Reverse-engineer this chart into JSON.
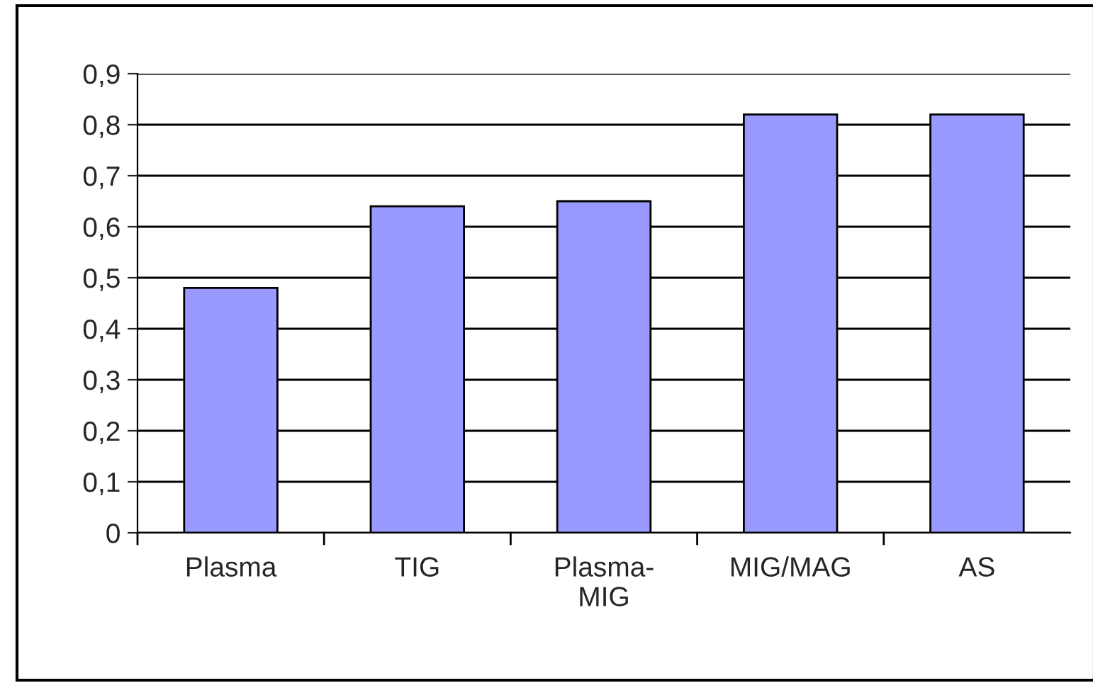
{
  "chart_data": {
    "type": "bar",
    "categories": [
      "Plasma",
      "TIG",
      "Plasma-\nMIG",
      "MIG/MAG",
      "AS"
    ],
    "values": [
      0.48,
      0.64,
      0.65,
      0.82,
      0.82
    ],
    "color": "#9999ff",
    "ylim": [
      0,
      0.9
    ],
    "yticks": [
      0,
      {
        "value": 0.1,
        "label": "0,1"
      },
      {
        "value": 0.2,
        "label": "0,2"
      },
      {
        "value": 0.3,
        "label": "0,3"
      },
      {
        "value": 0.4,
        "label": "0,4"
      },
      {
        "value": 0.5,
        "label": "0,5"
      },
      {
        "value": 0.6,
        "label": "0,6"
      },
      {
        "value": 0.7,
        "label": "0,7"
      },
      {
        "value": 0.8,
        "label": "0,8"
      },
      {
        "value": 0.9,
        "label": "0,9"
      }
    ],
    "grid": "y",
    "legend": false
  }
}
